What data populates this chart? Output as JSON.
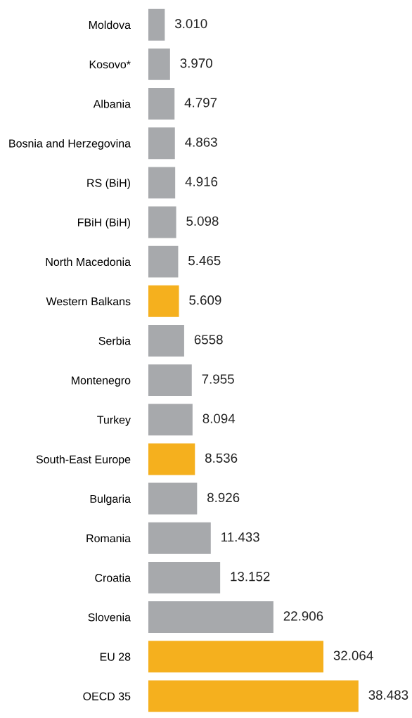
{
  "chart_data": {
    "type": "bar",
    "orientation": "horizontal",
    "categories": [
      "Moldova",
      "Kosovo*",
      "Albania",
      "Bosnia and Herzegovina",
      "RS (BiH)",
      "FBiH (BiH)",
      "North Macedonia",
      "Western Balkans",
      "Serbia",
      "Montenegro",
      "Turkey",
      "South-East Europe",
      "Bulgaria",
      "Romania",
      "Croatia",
      "Slovenia",
      "EU 28",
      "OECD 35"
    ],
    "values": [
      3010,
      3970,
      4797,
      4863,
      4916,
      5098,
      5465,
      5609,
      6558,
      7955,
      8094,
      8536,
      8926,
      11433,
      13152,
      22906,
      32064,
      38483
    ],
    "value_labels": [
      "3.010",
      "3.970",
      "4.797",
      "4.863",
      "4.916",
      "5.098",
      "5.465",
      "5.609",
      "6558",
      "7.955",
      "8.094",
      "8.536",
      "8.926",
      "11.433",
      "13.152",
      "22.906",
      "32.064",
      "38.483"
    ],
    "colors": [
      "#a7a9ac",
      "#a7a9ac",
      "#a7a9ac",
      "#a7a9ac",
      "#a7a9ac",
      "#a7a9ac",
      "#a7a9ac",
      "#f5b01e",
      "#a7a9ac",
      "#a7a9ac",
      "#a7a9ac",
      "#f5b01e",
      "#a7a9ac",
      "#a7a9ac",
      "#a7a9ac",
      "#a7a9ac",
      "#f5b01e",
      "#f5b01e"
    ],
    "tick_labels": "y",
    "grid": false,
    "legend": false
  }
}
